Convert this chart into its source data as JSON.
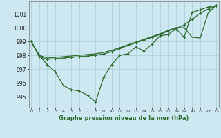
{
  "xlabel": "Graphe pression niveau de la mer (hPa)",
  "x": [
    0,
    1,
    2,
    3,
    4,
    5,
    6,
    7,
    8,
    9,
    10,
    11,
    12,
    13,
    14,
    15,
    16,
    17,
    18,
    19,
    20,
    21,
    22,
    23
  ],
  "line_zigzag": [
    999.0,
    998.0,
    997.3,
    996.8,
    995.8,
    995.5,
    995.4,
    995.1,
    994.6,
    996.4,
    997.3,
    998.0,
    998.1,
    998.6,
    998.3,
    998.8,
    999.4,
    999.5,
    999.9,
    999.3,
    1001.1,
    1001.3,
    1001.5,
    1001.6
  ],
  "line_upper1": [
    999.0,
    997.9,
    997.7,
    997.75,
    997.8,
    997.85,
    997.9,
    997.95,
    998.0,
    998.1,
    998.25,
    998.5,
    998.7,
    998.9,
    999.1,
    999.3,
    999.5,
    999.75,
    999.95,
    1000.2,
    1000.6,
    1001.05,
    1001.35,
    1001.6
  ],
  "line_upper2": [
    999.0,
    998.0,
    997.8,
    997.85,
    997.9,
    997.95,
    998.0,
    998.05,
    998.1,
    998.2,
    998.35,
    998.55,
    998.75,
    998.95,
    999.15,
    999.35,
    999.55,
    999.8,
    1000.0,
    1000.0,
    999.3,
    999.25,
    1001.1,
    1001.6
  ],
  "ylim": [
    994.2,
    1001.9
  ],
  "yticks": [
    995,
    996,
    997,
    998,
    999,
    1000,
    1001
  ],
  "line_color": "#2d6a2d",
  "bg_color": "#cde8f0",
  "grid_color": "#aaccd8",
  "markersize": 3,
  "linewidth": 0.9
}
